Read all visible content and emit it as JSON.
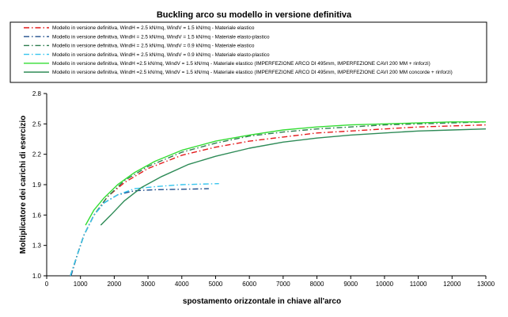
{
  "chart_data": {
    "type": "line",
    "title": "Buckling arco su modello in versione definitiva",
    "xlabel": "spostamento orizzontale in chiave all'arco",
    "ylabel": "Moltiplicatore dei carichi di esercizio",
    "xlim": [
      0,
      13000
    ],
    "ylim": [
      1.0,
      2.8
    ],
    "xticks": [
      "0",
      "1000",
      "2000",
      "3000",
      "4000",
      "5000",
      "6000",
      "7000",
      "8000",
      "9000",
      "10000",
      "11000",
      "12000",
      "13000"
    ],
    "yticks": [
      "1.0",
      "1.3",
      "1.6",
      "1.9",
      "2.2",
      "2.5",
      "2.8"
    ],
    "grid": false,
    "legend_position": "top",
    "series": [
      {
        "name": "Modello in versione definitiva, WindH = 2.5 kN/mq, WindV = 1.5 kN/mq - Materiale elastico",
        "color": "#e41a1c",
        "dash": "dashdot",
        "x": [
          720,
          900,
          1100,
          1400,
          1800,
          2300,
          3000,
          4000,
          5000,
          6000,
          7000,
          8000,
          9000,
          10000,
          11000,
          12000,
          13000
        ],
        "y": [
          1.0,
          1.2,
          1.4,
          1.6,
          1.78,
          1.92,
          2.06,
          2.19,
          2.27,
          2.33,
          2.37,
          2.41,
          2.43,
          2.45,
          2.47,
          2.48,
          2.49
        ]
      },
      {
        "name": "Modello in versione definitiva, WindH = 2.5 kN/mq, WindV = 1.5 kN/mq - Materiale elasto-plastico",
        "color": "#1f4e8c",
        "dash": "dashdot",
        "x": [
          720,
          900,
          1100,
          1400,
          1700,
          2100,
          2600,
          3200,
          4000,
          4800
        ],
        "y": [
          1.0,
          1.2,
          1.4,
          1.6,
          1.72,
          1.8,
          1.84,
          1.85,
          1.855,
          1.86
        ]
      },
      {
        "name": "Modello in versione definitiva, WindH = 2.5 kN/mq, WindV = 0.9 kN/mq - Materiale elastico",
        "color": "#2e7d4f",
        "dash": "dashdot",
        "x": [
          700,
          900,
          1100,
          1400,
          1800,
          2300,
          3000,
          4000,
          5000,
          6000,
          7000,
          8000,
          9000,
          10000,
          11000,
          12000,
          13000
        ],
        "y": [
          1.0,
          1.2,
          1.4,
          1.6,
          1.78,
          1.94,
          2.08,
          2.22,
          2.31,
          2.38,
          2.42,
          2.45,
          2.47,
          2.49,
          2.5,
          2.51,
          2.52
        ]
      },
      {
        "name": "Modello in versione definitiva, WindH = 2.5 kN/mq, WindV = 0.9 kN/mq - Materiale elasto-plastico",
        "color": "#35c4ee",
        "dash": "dashdot",
        "x": [
          700,
          900,
          1100,
          1400,
          1700,
          2100,
          2600,
          3200,
          4000,
          5100
        ],
        "y": [
          1.0,
          1.2,
          1.4,
          1.6,
          1.72,
          1.8,
          1.86,
          1.88,
          1.9,
          1.91
        ]
      },
      {
        "name": "Modello in versione definitiva, WindH =2.5 kN/mq, WindV = 1.5 kN/mq - Materiale elastico (IMPERFEZIONE ARCO DI 495mm, IMPERFEZIONE CAVI 200 MM + rinforzi)",
        "color": "#33dd33",
        "dash": "solid",
        "x": [
          1150,
          1400,
          1700,
          2100,
          2600,
          3200,
          4000,
          5000,
          6000,
          7000,
          8000,
          9000,
          10000,
          11000,
          12000,
          13000
        ],
        "y": [
          1.5,
          1.65,
          1.77,
          1.9,
          2.02,
          2.13,
          2.24,
          2.33,
          2.39,
          2.44,
          2.47,
          2.49,
          2.5,
          2.51,
          2.52,
          2.52
        ]
      },
      {
        "name": "Modello in versione definitiva, WindH =2.5 kN/mq, WindV = 1.5 kN/mq - Materiale elastico (IMPERFEZIONE ARCO DI 495mm, IMPERFEZIONE CAVI 200 MM concorde + rinforzi)",
        "color": "#2e8b57",
        "dash": "solid",
        "x": [
          1600,
          1900,
          2300,
          2800,
          3400,
          4200,
          5000,
          6000,
          7000,
          8000,
          9000,
          10000,
          11000,
          12000,
          13000
        ],
        "y": [
          1.5,
          1.6,
          1.74,
          1.87,
          1.98,
          2.1,
          2.18,
          2.26,
          2.32,
          2.36,
          2.39,
          2.41,
          2.43,
          2.44,
          2.45
        ]
      }
    ]
  }
}
